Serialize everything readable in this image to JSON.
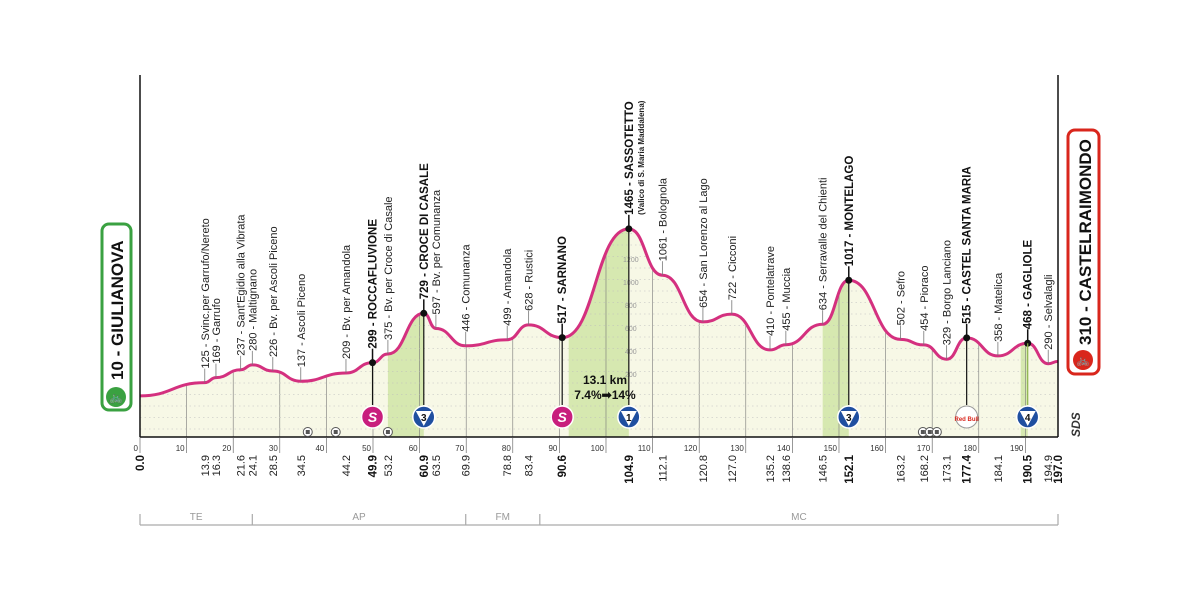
{
  "chart_data": {
    "type": "area",
    "title": "",
    "xlabel": "",
    "ylabel": "",
    "xlim": [
      0,
      197
    ],
    "ylim": [
      0,
      1465
    ],
    "grid": true,
    "colors": {
      "profile_line": "#d4307f",
      "fill": "#f7f8e6",
      "climb_fill": "#d6e8b0",
      "start": "#3aa141",
      "finish": "#d9261c",
      "sprint": "#c81e7d",
      "gpm": "#1f4fa0"
    },
    "x_ticks": [
      0,
      10,
      20,
      30,
      40,
      50,
      60,
      70,
      80,
      90,
      100,
      110,
      120,
      130,
      140,
      150,
      160,
      170,
      180,
      190
    ],
    "y_ticks": [
      200,
      400,
      600,
      800,
      1000,
      1200
    ],
    "start": {
      "km": 0,
      "elevation": 10,
      "label": "10 - GIULIANOVA",
      "icon": "bike-icon"
    },
    "finish": {
      "km": 197,
      "elevation": 310,
      "label": "310 - CASTELRAIMONDO",
      "icon": "bike-icon"
    },
    "points": [
      {
        "km": "0.0",
        "elev": 10,
        "name": "",
        "major": true
      },
      {
        "km": "13.9",
        "elev": 125,
        "name": "Svinc.per Garrufo/Nereto"
      },
      {
        "km": "16.3",
        "elev": 169,
        "name": "Garrufo"
      },
      {
        "km": "21.6",
        "elev": 237,
        "name": "Sant'Egidio alla Vibrata"
      },
      {
        "km": "24.1",
        "elev": 280,
        "name": "Maltignano"
      },
      {
        "km": "28.5",
        "elev": 226,
        "name": "Bv. per Ascoli Piceno"
      },
      {
        "km": "34.5",
        "elev": 137,
        "name": "Ascoli Piceno"
      },
      {
        "km": "44.2",
        "elev": 209,
        "name": "Bv. per Amandola"
      },
      {
        "km": "49.9",
        "elev": 299,
        "name": "ROCCAFLUVIONE",
        "major": true
      },
      {
        "km": "53.2",
        "elev": 375,
        "name": "Bv. per Croce di Casale"
      },
      {
        "km": "60.9",
        "elev": 729,
        "name": "CROCE DI CASALE",
        "major": true
      },
      {
        "km": "63.5",
        "elev": 597,
        "name": "Bv. per Comunanza"
      },
      {
        "km": "69.9",
        "elev": 446,
        "name": "Comunanza"
      },
      {
        "km": "78.8",
        "elev": 499,
        "name": "Amandola"
      },
      {
        "km": "83.4",
        "elev": 628,
        "name": "Rustici"
      },
      {
        "km": "90.6",
        "elev": 517,
        "name": "SARNANO",
        "major": true
      },
      {
        "km": "104.9",
        "elev": 1465,
        "name": "SASSOTETTO",
        "sub": "(Valico di S. Maria Maddalena)",
        "major": true
      },
      {
        "km": "112.1",
        "elev": 1061,
        "name": "Bolognola"
      },
      {
        "km": "120.8",
        "elev": 654,
        "name": "San Lorenzo al Lago"
      },
      {
        "km": "127.0",
        "elev": 722,
        "name": "Cicconi"
      },
      {
        "km": "135.2",
        "elev": 410,
        "name": "Pontelatrave"
      },
      {
        "km": "138.6",
        "elev": 455,
        "name": "Muccia"
      },
      {
        "km": "146.5",
        "elev": 634,
        "name": "Serravalle del Chienti"
      },
      {
        "km": "152.1",
        "elev": 1017,
        "name": "MONTELAGO",
        "major": true
      },
      {
        "km": "163.2",
        "elev": 502,
        "name": "Sefro"
      },
      {
        "km": "168.2",
        "elev": 454,
        "name": "Pioraco"
      },
      {
        "km": "173.1",
        "elev": 329,
        "name": "Borgo Lanciano"
      },
      {
        "km": "177.4",
        "elev": 515,
        "name": "CASTEL SANTA MARIA",
        "major": true
      },
      {
        "km": "184.1",
        "elev": 358,
        "name": "Matelica"
      },
      {
        "km": "190.5",
        "elev": 468,
        "name": "GAGLIOLE",
        "major": true
      },
      {
        "km": "194.9",
        "elev": 290,
        "name": "Selvalagli"
      },
      {
        "km": "197.0",
        "elev": 310,
        "name": "",
        "major": true
      }
    ],
    "climbs": [
      {
        "from": 53.2,
        "to": 60.9,
        "category": "3"
      },
      {
        "from": 92.0,
        "to": 104.9,
        "category": "1"
      },
      {
        "from": 146.5,
        "to": 152.1,
        "category": "3"
      },
      {
        "from": 189.0,
        "to": 190.5,
        "category": "4"
      }
    ],
    "sprints": [
      {
        "km": 49.9,
        "label": "S"
      },
      {
        "km": 90.6,
        "label": "S"
      }
    ],
    "bonus": [
      {
        "km": 177.4,
        "label": "Red Bull"
      }
    ],
    "feed_icons": [
      36,
      42,
      53.2,
      168,
      169.5,
      171
    ],
    "climb_info": {
      "length": "13.1 km",
      "gradient": "7.4%➡14%"
    },
    "regions": [
      {
        "label": "TE",
        "from": 0,
        "to": 24.1
      },
      {
        "label": "AP",
        "from": 24.1,
        "to": 69.9
      },
      {
        "label": "FM",
        "from": 69.9,
        "to": 85.8
      },
      {
        "label": "MC",
        "from": 85.8,
        "to": 197
      }
    ],
    "credit": "SDS"
  }
}
